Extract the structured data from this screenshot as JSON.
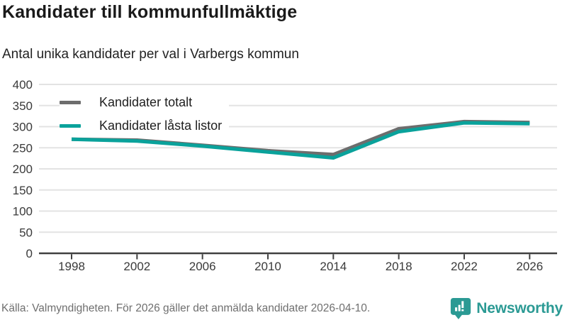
{
  "chart_data": {
    "type": "line",
    "title": "Kandidater till kommunfullmäktige",
    "subtitle": "Antal unika kandidater per val i Varbergs kommun",
    "x": [
      1998,
      2002,
      2006,
      2010,
      2014,
      2018,
      2022,
      2026
    ],
    "series": [
      {
        "name": "Kandidater totalt",
        "color": "#6d6d6d",
        "values": [
          270,
          268,
          256,
          243,
          234,
          295,
          312,
          310
        ]
      },
      {
        "name": "Kandidater låsta listor",
        "color": "#0aa29b",
        "values": [
          270,
          266,
          254,
          240,
          226,
          288,
          309,
          307
        ]
      }
    ],
    "ylim": [
      0,
      400
    ],
    "yticks": [
      0,
      50,
      100,
      150,
      200,
      250,
      300,
      350,
      400
    ],
    "grid": true,
    "legend_position": "top-left",
    "xlabel": "",
    "ylabel": ""
  },
  "footer": {
    "source": "Källa: Valmyndigheten. För 2026 gäller det anmälda kandidater 2026-04-10.",
    "brand": "Newsworthy"
  },
  "colors": {
    "accent_teal": "#0aa29b",
    "series_gray": "#6d6d6d",
    "brand_teal": "#2b9a94",
    "grid": "#e3e3e3",
    "axis": "#404040"
  }
}
